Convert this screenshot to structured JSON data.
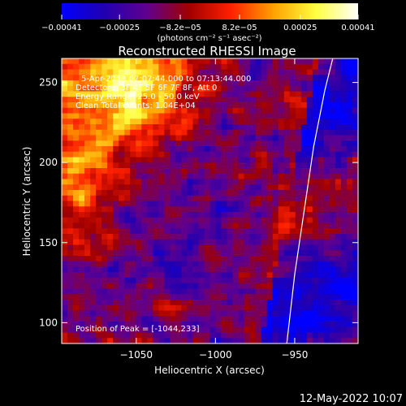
{
  "chart_data": {
    "type": "heatmap",
    "title": "Reconstructed RHESSI Image",
    "xlabel": "Heliocentric X (arcsec)",
    "ylabel": "Heliocentric Y (arcsec)",
    "xlim": [
      -1097,
      -910
    ],
    "ylim": [
      87,
      265
    ],
    "x_ticks": [
      -1050,
      -1000,
      -950
    ],
    "y_ticks": [
      100,
      150,
      200,
      250
    ],
    "x_tick_labels": [
      "−1050",
      "−1000",
      "−950"
    ],
    "y_tick_labels": [
      "100",
      "150",
      "200",
      "250"
    ],
    "colorbar": {
      "range": [
        -0.00041,
        0.00041
      ],
      "ticks": [
        -0.00041,
        -0.00025,
        -8.2e-05,
        8.2e-05,
        0.00025,
        0.00041
      ],
      "tick_labels": [
        "−0.00041",
        "−0.00025",
        "−8.2e−05",
        "8.2e−05",
        "0.00025",
        "0.00041"
      ],
      "unit_label": "(photons cm⁻² s⁻¹ asec⁻²)",
      "colors": [
        "#0000ff",
        "#2000b0",
        "#600090",
        "#a00000",
        "#ff2000",
        "#ffa000",
        "#ffff40",
        "#ffffff"
      ]
    },
    "annotations": [
      "5-Apr-2013 07:07:44.000 to 07:13:44.000",
      "Detectors: 3F 4F 5F 6F 7F 8F, Att 0",
      "Energy Range: 25.0 - 50.0 keV",
      "Clean    Total counts: 1.04E+04"
    ],
    "peak_label": "Position of Peak = [-1044,233]",
    "limb_curve": [
      [
        -955,
        87
      ],
      [
        -950,
        130
      ],
      [
        -944,
        170
      ],
      [
        -938,
        210
      ],
      [
        -931,
        245
      ],
      [
        -926,
        265
      ]
    ]
  },
  "footer": {
    "date": "12-May-2022 10:07"
  }
}
